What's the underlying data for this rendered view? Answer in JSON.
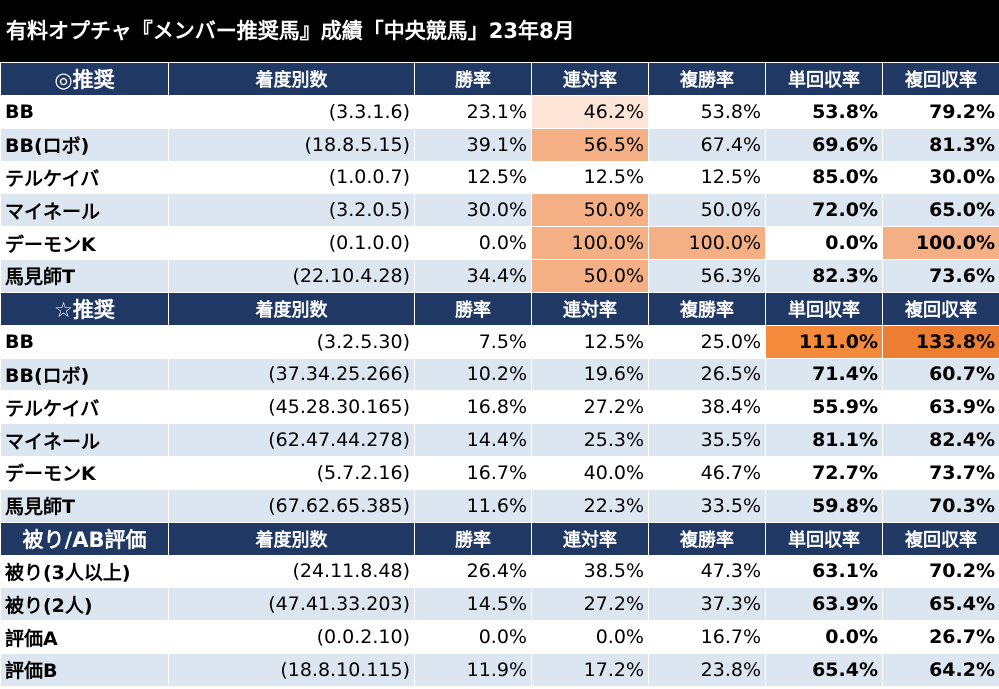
{
  "title": "有料オプチャ『メンバー推奨馬』成績「中央競馬」23年8月",
  "colors": {
    "header_bg": "#1f3864",
    "row_alt": "#dce6f1",
    "hl-light": "#fce4d6",
    "hl-mid": "#f4b084",
    "hl-strong": "#f58a3a",
    "hl-max": "#ed7d31"
  },
  "columns": [
    "着度別数",
    "勝率",
    "連対率",
    "複勝率",
    "単回収率",
    "複回収率"
  ],
  "sections": [
    {
      "label": "◎推奨",
      "rows": [
        {
          "name": "BB",
          "record": "(3.3.1.6)",
          "win": "23.1%",
          "rentai": "46.2%",
          "fukusho": "53.8%",
          "tan": "53.8%",
          "fuku": "79.2%",
          "hl": {
            "rentai": "hl-light"
          }
        },
        {
          "name": "BB(ロボ)",
          "record": "(18.8.5.15)",
          "win": "39.1%",
          "rentai": "56.5%",
          "fukusho": "67.4%",
          "tan": "69.6%",
          "fuku": "81.3%",
          "hl": {
            "rentai": "hl-mid"
          }
        },
        {
          "name": "テルケイバ",
          "record": "(1.0.0.7)",
          "win": "12.5%",
          "rentai": "12.5%",
          "fukusho": "12.5%",
          "tan": "85.0%",
          "fuku": "30.0%",
          "hl": {}
        },
        {
          "name": "マイネール",
          "record": "(3.2.0.5)",
          "win": "30.0%",
          "rentai": "50.0%",
          "fukusho": "50.0%",
          "tan": "72.0%",
          "fuku": "65.0%",
          "hl": {
            "rentai": "hl-mid"
          }
        },
        {
          "name": "デーモンK",
          "record": "(0.1.0.0)",
          "win": "0.0%",
          "rentai": "100.0%",
          "fukusho": "100.0%",
          "tan": "0.0%",
          "fuku": "100.0%",
          "hl": {
            "rentai": "hl-mid",
            "fukusho": "hl-mid",
            "fuku": "hl-mid"
          }
        },
        {
          "name": "馬見師T",
          "record": "(22.10.4.28)",
          "win": "34.4%",
          "rentai": "50.0%",
          "fukusho": "56.3%",
          "tan": "82.3%",
          "fuku": "73.6%",
          "hl": {
            "rentai": "hl-mid"
          }
        }
      ]
    },
    {
      "label": "☆推奨",
      "rows": [
        {
          "name": "BB",
          "record": "(3.2.5.30)",
          "win": "7.5%",
          "rentai": "12.5%",
          "fukusho": "25.0%",
          "tan": "111.0%",
          "fuku": "133.8%",
          "hl": {
            "tan": "hl-strong",
            "fuku": "hl-max"
          }
        },
        {
          "name": "BB(ロボ)",
          "record": "(37.34.25.266)",
          "win": "10.2%",
          "rentai": "19.6%",
          "fukusho": "26.5%",
          "tan": "71.4%",
          "fuku": "60.7%",
          "hl": {}
        },
        {
          "name": "テルケイバ",
          "record": "(45.28.30.165)",
          "win": "16.8%",
          "rentai": "27.2%",
          "fukusho": "38.4%",
          "tan": "55.9%",
          "fuku": "63.9%",
          "hl": {}
        },
        {
          "name": "マイネール",
          "record": "(62.47.44.278)",
          "win": "14.4%",
          "rentai": "25.3%",
          "fukusho": "35.5%",
          "tan": "81.1%",
          "fuku": "82.4%",
          "hl": {}
        },
        {
          "name": "デーモンK",
          "record": "(5.7.2.16)",
          "win": "16.7%",
          "rentai": "40.0%",
          "fukusho": "46.7%",
          "tan": "72.7%",
          "fuku": "73.7%",
          "hl": {}
        },
        {
          "name": "馬見師T",
          "record": "(67.62.65.385)",
          "win": "11.6%",
          "rentai": "22.3%",
          "fukusho": "33.5%",
          "tan": "59.8%",
          "fuku": "70.3%",
          "hl": {}
        }
      ]
    },
    {
      "label": "被り/AB評価",
      "rows": [
        {
          "name": "被り(3人以上)",
          "record": "(24.11.8.48)",
          "win": "26.4%",
          "rentai": "38.5%",
          "fukusho": "47.3%",
          "tan": "63.1%",
          "fuku": "70.2%",
          "hl": {}
        },
        {
          "name": "被り(2人)",
          "record": "(47.41.33.203)",
          "win": "14.5%",
          "rentai": "27.2%",
          "fukusho": "37.3%",
          "tan": "63.9%",
          "fuku": "65.4%",
          "hl": {}
        },
        {
          "name": "評価A",
          "record": "(0.0.2.10)",
          "win": "0.0%",
          "rentai": "0.0%",
          "fukusho": "16.7%",
          "tan": "0.0%",
          "fuku": "26.7%",
          "hl": {}
        },
        {
          "name": "評価B",
          "record": "(18.8.10.115)",
          "win": "11.9%",
          "rentai": "17.2%",
          "fukusho": "23.8%",
          "tan": "65.4%",
          "fuku": "64.2%",
          "hl": {}
        }
      ]
    }
  ]
}
